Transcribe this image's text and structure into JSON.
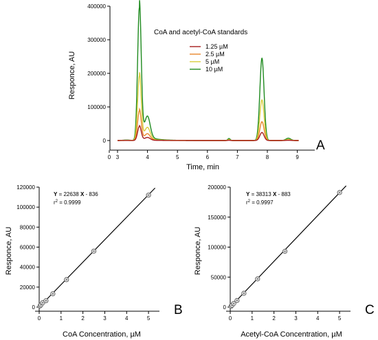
{
  "chart_data": [
    {
      "type": "line",
      "panel": "A",
      "legend_title": "CoA and acetyl-CoA standards",
      "legend_placement": "top-right",
      "xlabel": "Time, min",
      "ylabel": "Responce, AU",
      "xlim": [
        0,
        9.2
      ],
      "ylim": [
        -20000,
        400000
      ],
      "x_ticks": [
        0,
        3,
        4,
        5,
        6,
        7,
        8,
        9
      ],
      "x_tick_labels": [
        "0",
        "3",
        "4",
        "5",
        "6",
        "7",
        "8",
        "9"
      ],
      "y_ticks": [
        0,
        100000,
        200000,
        300000,
        400000
      ],
      "y_tick_labels": [
        "0",
        "100000",
        "200000",
        "300000",
        "400000"
      ],
      "series": [
        {
          "name": "1.25 µM",
          "color": "#a51c1c",
          "peaks": [
            42000,
            8000,
            24000
          ]
        },
        {
          "name": "2.5 µM",
          "color": "#e8862a",
          "peaks": [
            88000,
            18000,
            56000
          ]
        },
        {
          "name": "5 µM",
          "color": "#d8cc3a",
          "peaks": [
            192000,
            34000,
            121000
          ]
        },
        {
          "name": "10 µM",
          "color": "#1e8a1e",
          "peaks": [
            395000,
            62000,
            245000
          ]
        }
      ],
      "peak_times": [
        3.73,
        4.0,
        7.82
      ],
      "peak_widths": [
        0.06,
        0.09,
        0.07
      ]
    },
    {
      "type": "scatter",
      "panel": "B",
      "equation_y": "Y",
      "equation_rest": " = 22638 ",
      "equation_x": "X",
      "equation_tail": " - 836",
      "r2_label": "r",
      "r2_sup": "2",
      "r2_value": " = 0.9999",
      "slope": 22638,
      "intercept": -836,
      "xlabel": "CoA Concentration, µM",
      "ylabel": "Responce, AU",
      "xlim": [
        0,
        5.5
      ],
      "ylim": [
        0,
        120000
      ],
      "x_ticks": [
        0,
        1,
        2,
        3,
        4,
        5
      ],
      "x_tick_labels": [
        "0",
        "1",
        "2",
        "3",
        "4",
        "5"
      ],
      "y_ticks": [
        0,
        20000,
        40000,
        60000,
        80000,
        100000,
        120000
      ],
      "y_tick_labels": [
        "0",
        "20000",
        "40000",
        "60000",
        "80000",
        "100000",
        "120000"
      ],
      "x": [
        0.04,
        0.08,
        0.16,
        0.31,
        0.625,
        1.25,
        2.5,
        5.0
      ],
      "y": [
        1200,
        2200,
        4400,
        6400,
        13300,
        27500,
        56000,
        112000
      ]
    },
    {
      "type": "scatter",
      "panel": "C",
      "equation_y": "Y",
      "equation_rest": " = 38313 ",
      "equation_x": "X",
      "equation_tail": " - 883",
      "r2_label": "r",
      "r2_sup": "2",
      "r2_value": " = 0.9997",
      "slope": 38313,
      "intercept": -883,
      "xlabel": "Acetyl-CoA Concentration, µM",
      "ylabel": "Responce, AU",
      "xlim": [
        0,
        5.5
      ],
      "ylim": [
        0,
        200000
      ],
      "x_ticks": [
        0,
        1,
        2,
        3,
        4,
        5
      ],
      "x_tick_labels": [
        "0",
        "1",
        "2",
        "3",
        "4",
        "5"
      ],
      "y_ticks": [
        0,
        50000,
        100000,
        150000,
        200000
      ],
      "y_tick_labels": [
        "0",
        "50000",
        "100000",
        "150000",
        "200000"
      ],
      "x": [
        0.04,
        0.08,
        0.16,
        0.31,
        0.625,
        1.25,
        2.5,
        5.0
      ],
      "y": [
        1500,
        3000,
        6000,
        11000,
        23000,
        47000,
        93000,
        191000
      ]
    }
  ]
}
